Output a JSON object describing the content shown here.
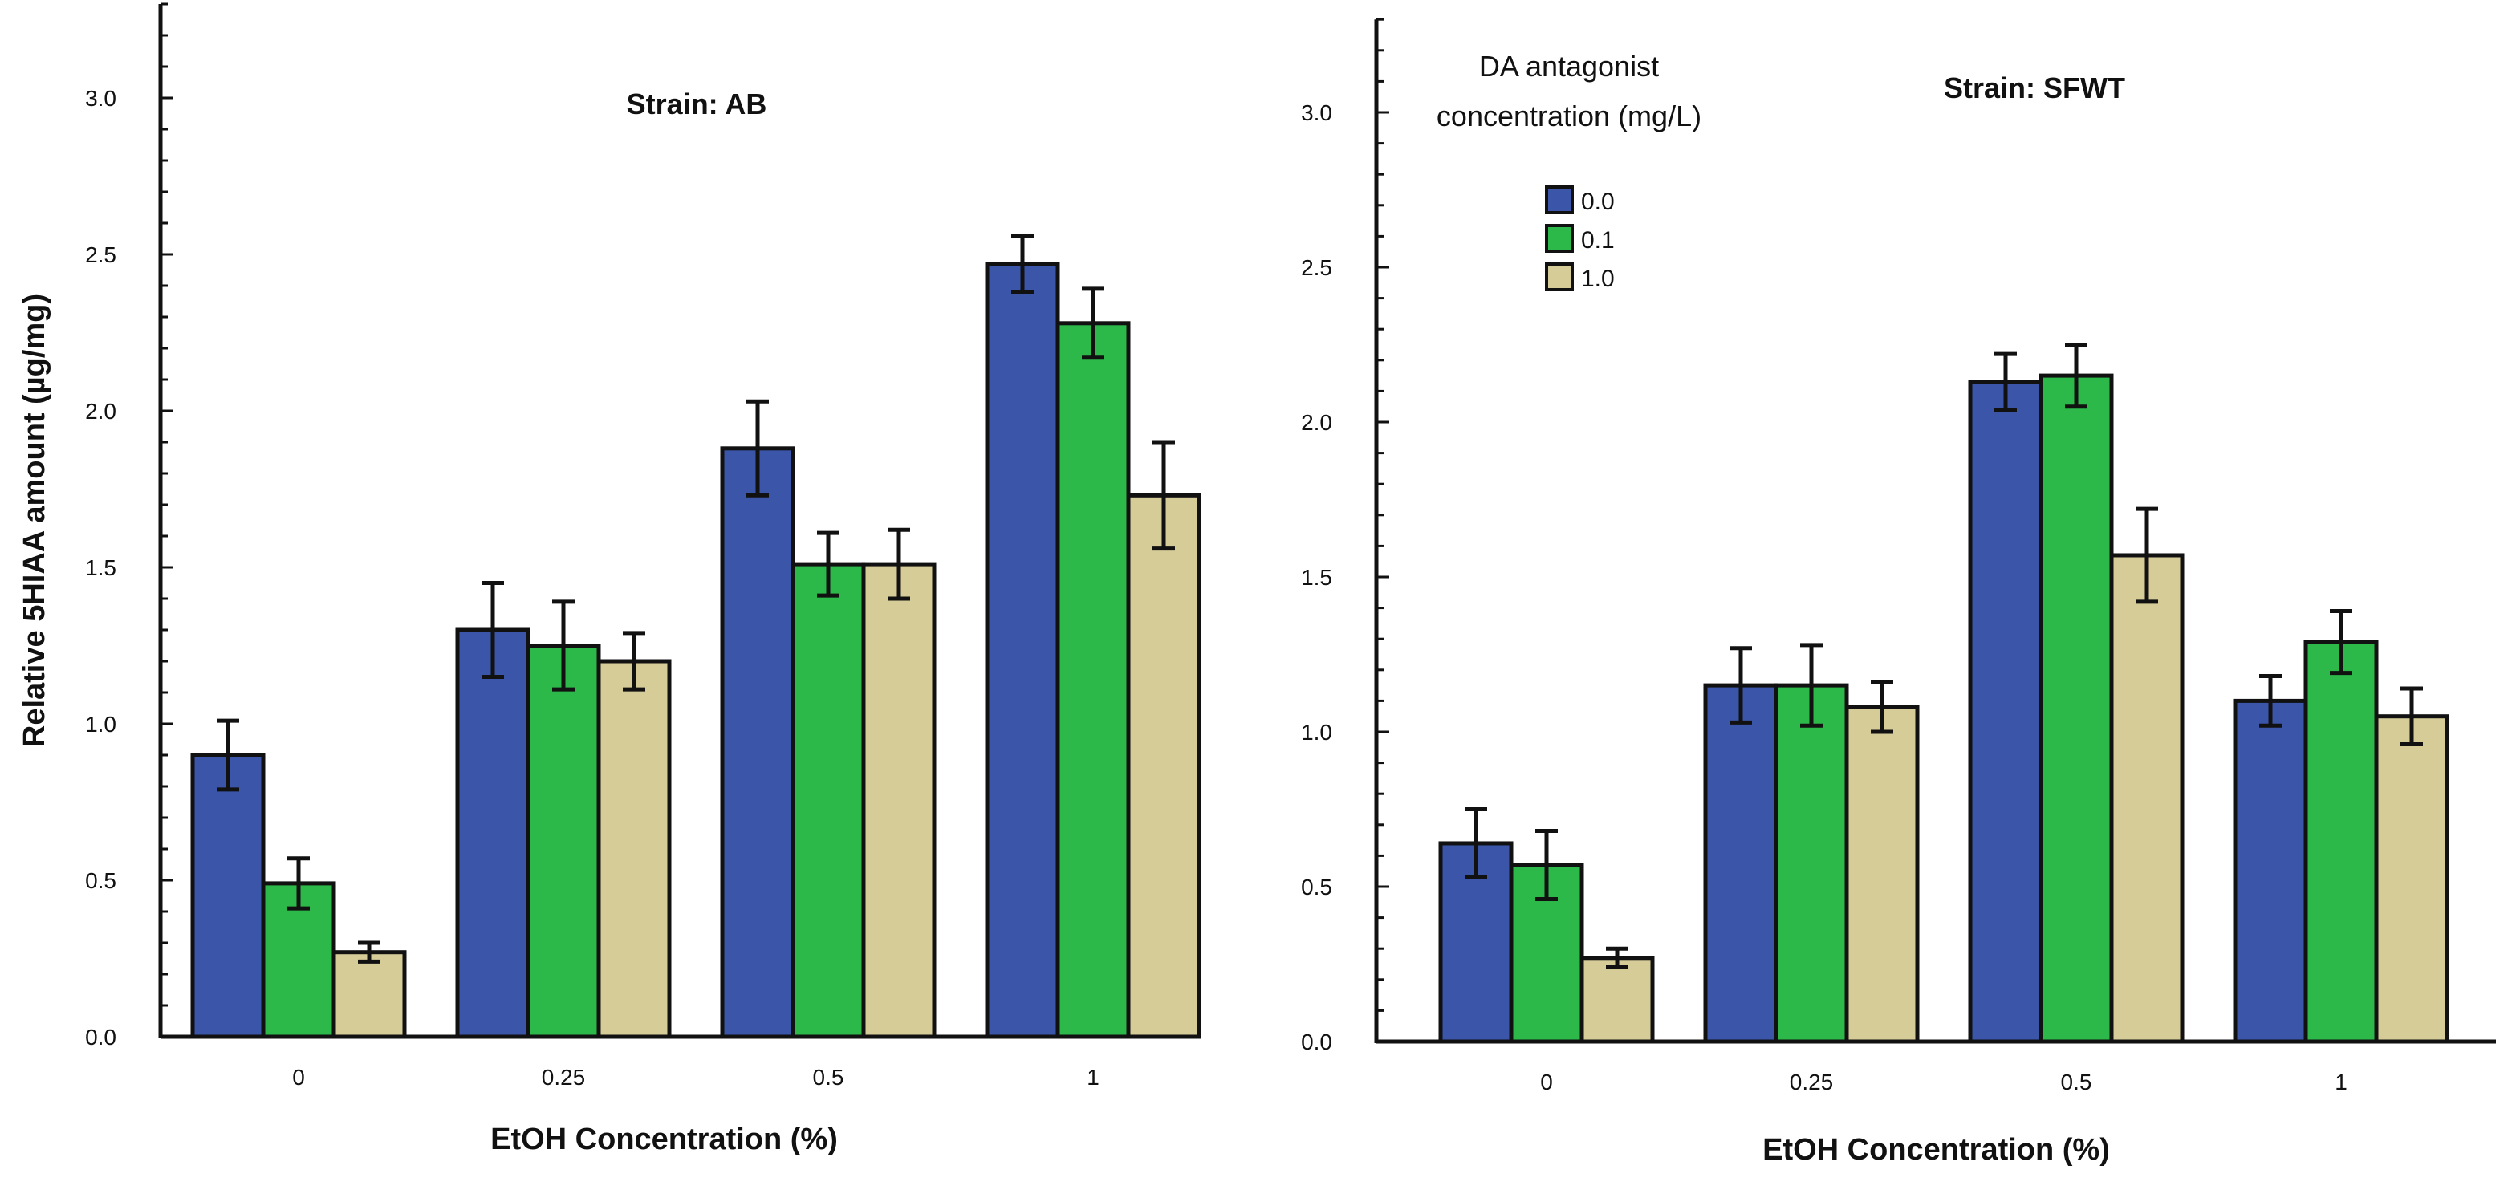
{
  "chart_data": [
    {
      "type": "bar",
      "title": "Strain: AB",
      "xlabel": "EtOH Concentration (%)",
      "ylabel": "Relative 5HIAA amount (µg/mg)",
      "ylim": [
        0,
        3.3
      ],
      "yticks": [
        "0.0",
        "0.5",
        "1.0",
        "1.5",
        "2.0",
        "2.5",
        "3.0"
      ],
      "categories": [
        "0",
        "0.25",
        "0.5",
        "1"
      ],
      "series": [
        {
          "name": "0.0",
          "color": "#3b55a8",
          "values": [
            0.9,
            1.3,
            1.88,
            2.47
          ],
          "errors": [
            0.11,
            0.15,
            0.15,
            0.09
          ]
        },
        {
          "name": "0.1",
          "color": "#2db84a",
          "values": [
            0.49,
            1.25,
            1.51,
            2.28
          ],
          "errors": [
            0.08,
            0.14,
            0.1,
            0.11
          ]
        },
        {
          "name": "1.0",
          "color": "#d6cc98",
          "values": [
            0.27,
            1.2,
            1.51,
            1.73
          ],
          "errors": [
            0.03,
            0.09,
            0.11,
            0.17
          ]
        }
      ]
    },
    {
      "type": "bar",
      "title": "Strain: SFWT",
      "xlabel": "EtOH Concentration (%)",
      "ylabel": "",
      "ylim": [
        0,
        3.3
      ],
      "yticks": [
        "0.0",
        "0.5",
        "1.0",
        "1.5",
        "2.0",
        "2.5",
        "3.0"
      ],
      "categories": [
        "0",
        "0.25",
        "0.5",
        "1"
      ],
      "series": [
        {
          "name": "0.0",
          "color": "#3b55a8",
          "values": [
            0.64,
            1.15,
            2.13,
            1.1
          ],
          "errors": [
            0.11,
            0.12,
            0.09,
            0.08
          ]
        },
        {
          "name": "0.1",
          "color": "#2db84a",
          "values": [
            0.57,
            1.15,
            2.15,
            1.29
          ],
          "errors": [
            0.11,
            0.13,
            0.1,
            0.1
          ]
        },
        {
          "name": "1.0",
          "color": "#d6cc98",
          "values": [
            0.27,
            1.08,
            1.57,
            1.05
          ],
          "errors": [
            0.03,
            0.08,
            0.15,
            0.09
          ]
        }
      ]
    }
  ],
  "legend": {
    "title_line1": "DA antagonist",
    "title_line2": "concentration  (mg/L)",
    "entries": [
      "0.0",
      "0.1",
      "1.0"
    ]
  }
}
